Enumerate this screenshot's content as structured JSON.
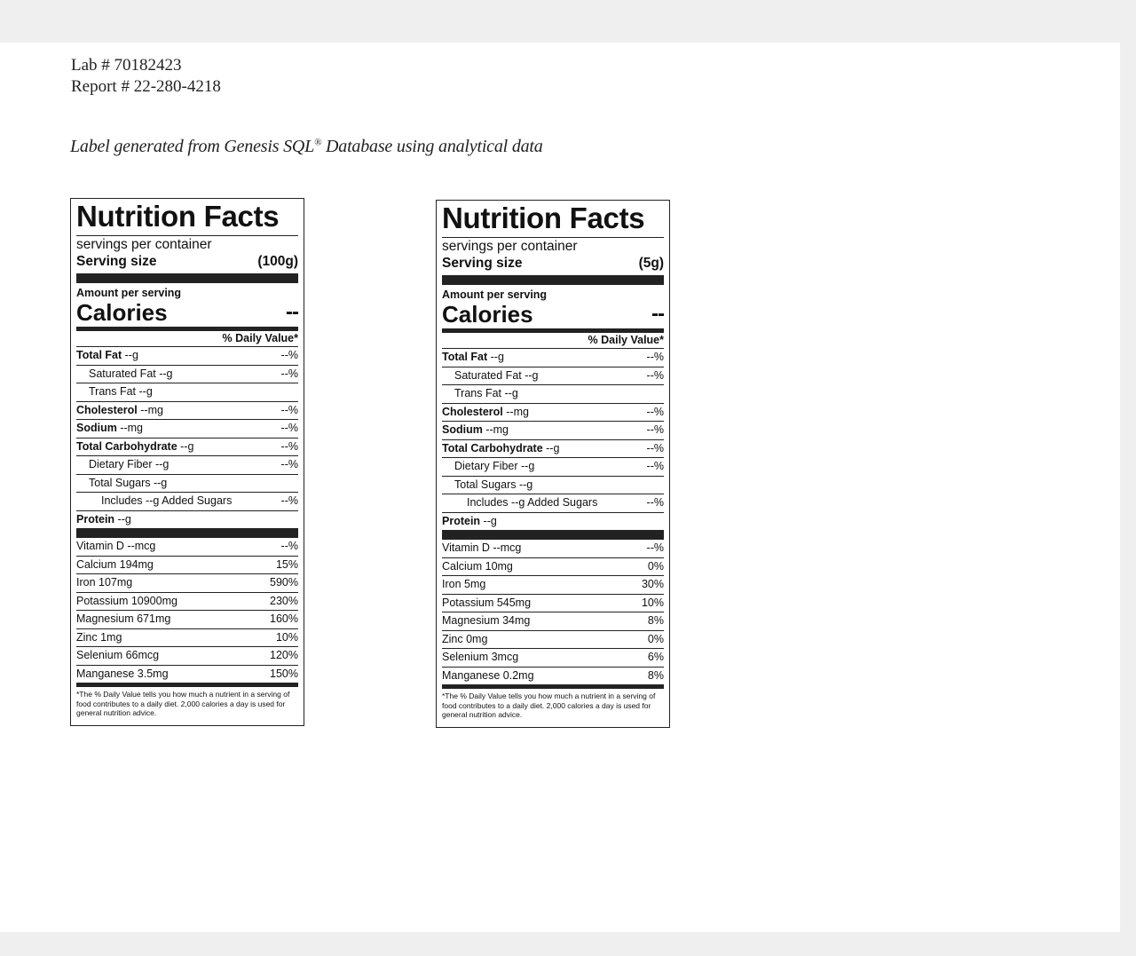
{
  "header": {
    "lab": "Lab # 70182423",
    "report": "Report # 22-280-4218"
  },
  "subtitle": {
    "text": "Label generated from Genesis SQL",
    "reg": "®",
    "rest": " Database using analytical data"
  },
  "labels": [
    {
      "title": "Nutrition Facts",
      "servings_per_container": "servings per container",
      "serving_size_label": "Serving size",
      "serving_size_value": "(100g)",
      "amount_per_serving": "Amount per serving",
      "calories_label": "Calories",
      "calories_value": "--",
      "dv_header": "% Daily Value*",
      "nutrients": [
        {
          "name": "Total Fat",
          "amount": " --g",
          "dv": "--%",
          "bold": true,
          "indent": 0
        },
        {
          "name": "Saturated Fat --g",
          "amount": "",
          "dv": "--%",
          "bold": false,
          "indent": 1
        },
        {
          "name": "Trans Fat --g",
          "amount": "",
          "dv": "",
          "bold": false,
          "indent": 1
        },
        {
          "name": "Cholesterol",
          "amount": " --mg",
          "dv": "--%",
          "bold": true,
          "indent": 0
        },
        {
          "name": "Sodium",
          "amount": " --mg",
          "dv": "--%",
          "bold": true,
          "indent": 0
        },
        {
          "name": "Total Carbohydrate",
          "amount": " --g",
          "dv": "--%",
          "bold": true,
          "indent": 0
        },
        {
          "name": "Dietary Fiber --g",
          "amount": "",
          "dv": "--%",
          "bold": false,
          "indent": 1
        },
        {
          "name": "Total Sugars --g",
          "amount": "",
          "dv": "",
          "bold": false,
          "indent": 1
        },
        {
          "name": "Includes --g Added Sugars",
          "amount": "",
          "dv": "--%",
          "bold": false,
          "indent": 2
        },
        {
          "name": "Protein",
          "amount": " --g",
          "dv": "",
          "bold": true,
          "indent": 0
        }
      ],
      "vitamins": [
        {
          "name": "Vitamin D --mcg",
          "dv": "--%"
        },
        {
          "name": "Calcium 194mg",
          "dv": "15%"
        },
        {
          "name": "Iron 107mg",
          "dv": "590%"
        },
        {
          "name": "Potassium 10900mg",
          "dv": "230%"
        },
        {
          "name": "Magnesium 671mg",
          "dv": "160%"
        },
        {
          "name": "Zinc 1mg",
          "dv": "10%"
        },
        {
          "name": "Selenium 66mcg",
          "dv": "120%"
        },
        {
          "name": "Manganese 3.5mg",
          "dv": "150%"
        }
      ],
      "footnote": "*The % Daily Value tells you how much a nutrient in a serving of food contributes to a daily diet. 2,000 calories a day is used for general nutrition advice."
    },
    {
      "title": "Nutrition Facts",
      "servings_per_container": "servings per container",
      "serving_size_label": "Serving size",
      "serving_size_value": "(5g)",
      "amount_per_serving": "Amount per serving",
      "calories_label": "Calories",
      "calories_value": "--",
      "dv_header": "% Daily Value*",
      "nutrients": [
        {
          "name": "Total Fat",
          "amount": " --g",
          "dv": "--%",
          "bold": true,
          "indent": 0
        },
        {
          "name": "Saturated Fat --g",
          "amount": "",
          "dv": "--%",
          "bold": false,
          "indent": 1
        },
        {
          "name": "Trans Fat --g",
          "amount": "",
          "dv": "",
          "bold": false,
          "indent": 1
        },
        {
          "name": "Cholesterol",
          "amount": " --mg",
          "dv": "--%",
          "bold": true,
          "indent": 0
        },
        {
          "name": "Sodium",
          "amount": " --mg",
          "dv": "--%",
          "bold": true,
          "indent": 0
        },
        {
          "name": "Total Carbohydrate",
          "amount": " --g",
          "dv": "--%",
          "bold": true,
          "indent": 0
        },
        {
          "name": "Dietary Fiber --g",
          "amount": "",
          "dv": "--%",
          "bold": false,
          "indent": 1
        },
        {
          "name": "Total Sugars --g",
          "amount": "",
          "dv": "",
          "bold": false,
          "indent": 1
        },
        {
          "name": "Includes --g Added Sugars",
          "amount": "",
          "dv": "--%",
          "bold": false,
          "indent": 2
        },
        {
          "name": "Protein",
          "amount": " --g",
          "dv": "",
          "bold": true,
          "indent": 0
        }
      ],
      "vitamins": [
        {
          "name": "Vitamin D --mcg",
          "dv": "--%"
        },
        {
          "name": "Calcium 10mg",
          "dv": "0%"
        },
        {
          "name": "Iron 5mg",
          "dv": "30%"
        },
        {
          "name": "Potassium 545mg",
          "dv": "10%"
        },
        {
          "name": "Magnesium 34mg",
          "dv": "8%"
        },
        {
          "name": "Zinc 0mg",
          "dv": "0%"
        },
        {
          "name": "Selenium 3mcg",
          "dv": "6%"
        },
        {
          "name": "Manganese 0.2mg",
          "dv": "8%"
        }
      ],
      "footnote": "*The % Daily Value tells you how much a nutrient in a serving of food contributes to a daily diet. 2,000 calories a day is used for general nutrition advice."
    }
  ]
}
